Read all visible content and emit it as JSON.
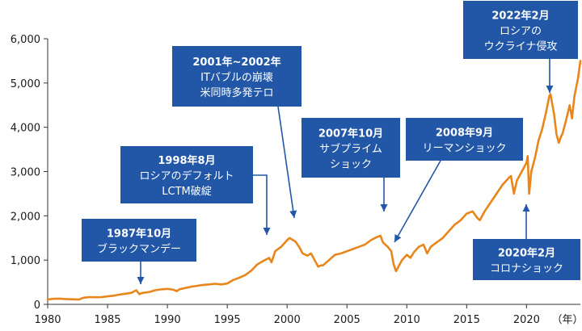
{
  "chart_data": {
    "type": "line",
    "title": "",
    "xlabel": "",
    "x_unit": "（年）",
    "ylabel": "",
    "xlim": [
      1980,
      2024.5
    ],
    "ylim": [
      0,
      6000
    ],
    "x_ticks": [
      1980,
      1985,
      1990,
      1995,
      2000,
      2005,
      2010,
      2015,
      2020
    ],
    "x_tick_labels": [
      "1980",
      "1985",
      "1990",
      "1995",
      "2000",
      "2005",
      "2010",
      "2015",
      "2020"
    ],
    "y_ticks": [
      0,
      1000,
      2000,
      3000,
      4000,
      5000,
      6000
    ],
    "y_tick_labels": [
      "0",
      "1,000",
      "2,000",
      "3,000",
      "4,000",
      "5,000",
      "6,000"
    ],
    "grid": false,
    "legend": "none",
    "colors": {
      "line": "#e8861c",
      "box": "#2257a8",
      "axis": "#333333"
    },
    "series": [
      {
        "x": [
          1980.0,
          1980.5,
          1981.0,
          1981.5,
          1982.0,
          1982.6,
          1983.0,
          1983.5,
          1984.0,
          1984.5,
          1985.0,
          1985.5,
          1986.0,
          1986.5,
          1987.0,
          1987.4,
          1987.65,
          1987.8,
          1988.0,
          1988.5,
          1989.0,
          1989.5,
          1990.0,
          1990.5,
          1990.8,
          1991.0,
          1991.5,
          1992.0,
          1992.5,
          1993.0,
          1993.5,
          1994.0,
          1994.5,
          1995.0,
          1995.5,
          1996.0,
          1996.5,
          1997.0,
          1997.5,
          1998.0,
          1998.5,
          1998.7,
          1999.0,
          1999.5,
          2000.0,
          2000.2,
          2000.5,
          2000.7,
          2001.0,
          2001.3,
          2001.7,
          2002.0,
          2002.3,
          2002.6,
          2002.8,
          2003.0,
          2003.5,
          2004.0,
          2004.5,
          2005.0,
          2005.5,
          2006.0,
          2006.5,
          2007.0,
          2007.5,
          2007.8,
          2008.0,
          2008.4,
          2008.7,
          2008.9,
          2009.1,
          2009.3,
          2009.6,
          2010.0,
          2010.3,
          2010.6,
          2011.0,
          2011.4,
          2011.7,
          2012.0,
          2012.5,
          2013.0,
          2013.5,
          2014.0,
          2014.5,
          2015.0,
          2015.5,
          2015.9,
          2016.1,
          2016.5,
          2017.0,
          2017.5,
          2018.0,
          2018.5,
          2018.7,
          2018.95,
          2019.2,
          2019.5,
          2020.0,
          2020.1,
          2020.22,
          2020.4,
          2020.7,
          2021.0,
          2021.3,
          2021.6,
          2021.9,
          2022.0,
          2022.3,
          2022.5,
          2022.7,
          2022.9,
          2023.0,
          2023.3,
          2023.6,
          2023.8,
          2024.0,
          2024.3,
          2024.5
        ],
        "values": [
          110,
          125,
          130,
          120,
          115,
          110,
          150,
          165,
          160,
          165,
          180,
          195,
          220,
          240,
          260,
          320,
          230,
          250,
          260,
          280,
          320,
          340,
          350,
          330,
          300,
          340,
          370,
          400,
          420,
          440,
          450,
          465,
          450,
          470,
          550,
          600,
          660,
          760,
          900,
          980,
          1050,
          950,
          1200,
          1300,
          1450,
          1500,
          1450,
          1420,
          1300,
          1150,
          1100,
          1150,
          1000,
          850,
          880,
          880,
          1000,
          1120,
          1150,
          1200,
          1250,
          1300,
          1350,
          1450,
          1520,
          1550,
          1400,
          1300,
          1200,
          900,
          750,
          850,
          1000,
          1120,
          1050,
          1180,
          1300,
          1350,
          1150,
          1300,
          1400,
          1500,
          1650,
          1800,
          1900,
          2050,
          2100,
          1950,
          1900,
          2100,
          2300,
          2500,
          2700,
          2850,
          2900,
          2500,
          2800,
          2950,
          3200,
          3350,
          2500,
          3000,
          3300,
          3700,
          3950,
          4300,
          4700,
          4750,
          4300,
          3850,
          3650,
          3800,
          3850,
          4150,
          4500,
          4200,
          4700,
          5100,
          5500
        ]
      }
    ],
    "annotations": [
      {
        "id": "blackmonday",
        "title": "1987年10月",
        "lines": [
          "ブラックマンデー"
        ]
      },
      {
        "id": "russia-default",
        "title": "1998年8月",
        "lines": [
          "ロシアのデフォルト",
          "LCTM破綻"
        ]
      },
      {
        "id": "it-bubble",
        "title": "2001年~2002年",
        "lines": [
          "ITバブルの崩壊",
          "米同時多発テロ"
        ]
      },
      {
        "id": "subprime",
        "title": "2007年10月",
        "lines": [
          "サブプライム",
          "ショック"
        ]
      },
      {
        "id": "lehman",
        "title": "2008年9月",
        "lines": [
          "リーマンショック"
        ]
      },
      {
        "id": "ukraine",
        "title": "2022年2月",
        "lines": [
          "ロシアの",
          "ウクライナ侵攻"
        ]
      },
      {
        "id": "corona",
        "title": "2020年2月",
        "lines": [
          "コロナショック"
        ]
      }
    ]
  }
}
